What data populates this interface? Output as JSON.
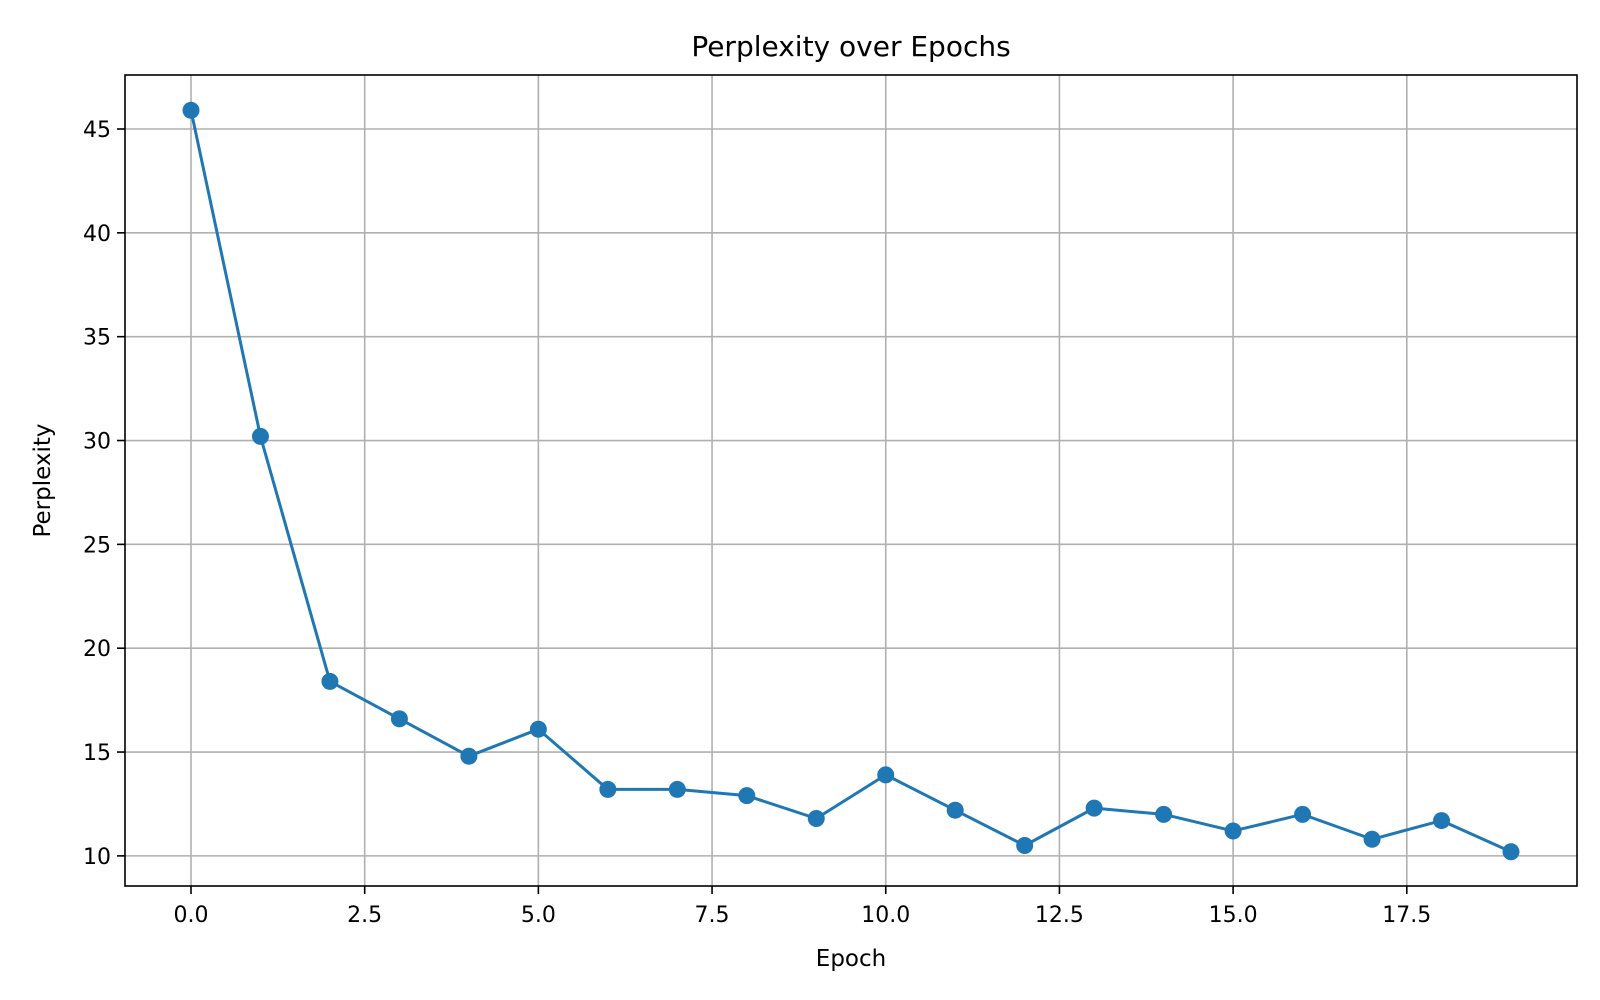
{
  "chart_data": {
    "type": "line",
    "title": "Perplexity over Epochs",
    "xlabel": "Epoch",
    "ylabel": "Perplexity",
    "xlim": [
      -0.95,
      19.95
    ],
    "ylim": [
      8.55,
      47.6
    ],
    "xticks": [
      0.0,
      2.5,
      5.0,
      7.5,
      10.0,
      12.5,
      15.0,
      17.5
    ],
    "xtick_labels": [
      "0.0",
      "2.5",
      "5.0",
      "7.5",
      "10.0",
      "12.5",
      "15.0",
      "17.5"
    ],
    "yticks": [
      10,
      15,
      20,
      25,
      30,
      35,
      40,
      45
    ],
    "ytick_labels": [
      "10",
      "15",
      "20",
      "25",
      "30",
      "35",
      "40",
      "45"
    ],
    "grid": true,
    "series": [
      {
        "color": "#1f77b4",
        "marker": "circle",
        "x": [
          0,
          1,
          2,
          3,
          4,
          5,
          6,
          7,
          8,
          9,
          10,
          11,
          12,
          13,
          14,
          15,
          16,
          17,
          18,
          19
        ],
        "y": [
          45.9,
          30.2,
          18.4,
          16.6,
          14.8,
          16.1,
          13.2,
          13.2,
          12.9,
          11.8,
          13.9,
          12.2,
          10.5,
          12.3,
          12.0,
          11.2,
          12.0,
          10.8,
          11.7,
          10.2
        ]
      }
    ]
  }
}
